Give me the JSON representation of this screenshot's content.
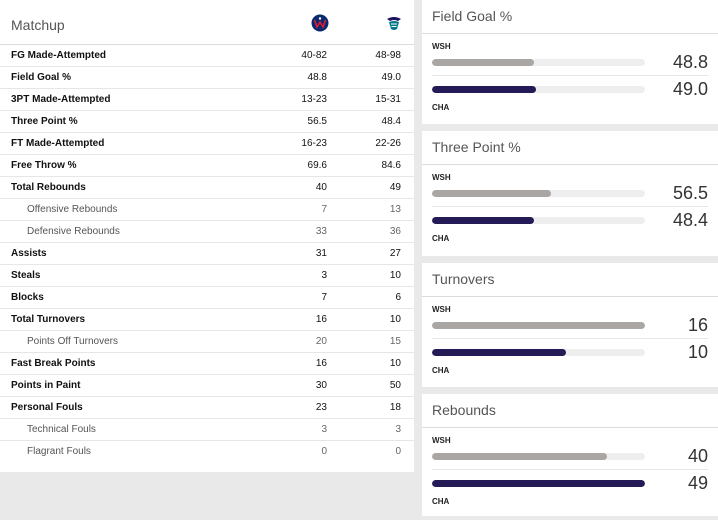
{
  "matchup": {
    "title": "Matchup",
    "teams": [
      {
        "abbr": "WSH",
        "logo": "wizards-logo-icon",
        "color": "#0b2a6b"
      },
      {
        "abbr": "CHA",
        "logo": "hornets-logo-icon",
        "color": "#1d1160"
      }
    ],
    "rows": [
      {
        "label": "FG Made-Attempted",
        "wsh": "40-82",
        "cha": "48-98",
        "sub": false
      },
      {
        "label": "Field Goal %",
        "wsh": "48.8",
        "cha": "49.0",
        "sub": false
      },
      {
        "label": "3PT Made-Attempted",
        "wsh": "13-23",
        "cha": "15-31",
        "sub": false
      },
      {
        "label": "Three Point %",
        "wsh": "56.5",
        "cha": "48.4",
        "sub": false
      },
      {
        "label": "FT Made-Attempted",
        "wsh": "16-23",
        "cha": "22-26",
        "sub": false
      },
      {
        "label": "Free Throw %",
        "wsh": "69.6",
        "cha": "84.6",
        "sub": false
      },
      {
        "label": "Total Rebounds",
        "wsh": "40",
        "cha": "49",
        "sub": false
      },
      {
        "label": "Offensive Rebounds",
        "wsh": "7",
        "cha": "13",
        "sub": true
      },
      {
        "label": "Defensive Rebounds",
        "wsh": "33",
        "cha": "36",
        "sub": true
      },
      {
        "label": "Assists",
        "wsh": "31",
        "cha": "27",
        "sub": false
      },
      {
        "label": "Steals",
        "wsh": "3",
        "cha": "10",
        "sub": false
      },
      {
        "label": "Blocks",
        "wsh": "7",
        "cha": "6",
        "sub": false
      },
      {
        "label": "Total Turnovers",
        "wsh": "16",
        "cha": "10",
        "sub": false
      },
      {
        "label": "Points Off Turnovers",
        "wsh": "20",
        "cha": "15",
        "sub": true
      },
      {
        "label": "Fast Break Points",
        "wsh": "16",
        "cha": "10",
        "sub": false
      },
      {
        "label": "Points in Paint",
        "wsh": "30",
        "cha": "50",
        "sub": false
      },
      {
        "label": "Personal Fouls",
        "wsh": "23",
        "cha": "18",
        "sub": false
      },
      {
        "label": "Technical Fouls",
        "wsh": "3",
        "cha": "3",
        "sub": true
      },
      {
        "label": "Flagrant Fouls",
        "wsh": "0",
        "cha": "0",
        "sub": true
      }
    ]
  },
  "cards": [
    {
      "title": "Field Goal %",
      "wsh_label": "WSH",
      "cha_label": "CHA",
      "wsh_value": "48.8",
      "cha_value": "49.0",
      "wsh_fill": 0.48,
      "cha_fill": 0.49
    },
    {
      "title": "Three Point %",
      "wsh_label": "WSH",
      "cha_label": "CHA",
      "wsh_value": "56.5",
      "cha_value": "48.4",
      "wsh_fill": 0.56,
      "cha_fill": 0.48
    },
    {
      "title": "Turnovers",
      "wsh_label": "WSH",
      "cha_label": "CHA",
      "wsh_value": "16",
      "cha_value": "10",
      "wsh_fill": 1.0,
      "cha_fill": 0.63
    },
    {
      "title": "Rebounds",
      "wsh_label": "WSH",
      "cha_label": "CHA",
      "wsh_value": "40",
      "cha_value": "49",
      "wsh_fill": 0.82,
      "cha_fill": 1.0
    }
  ]
}
